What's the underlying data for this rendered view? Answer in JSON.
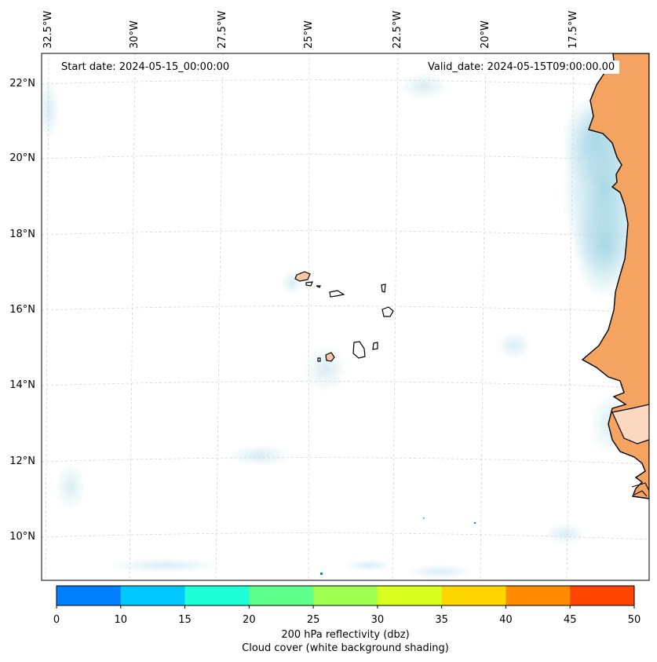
{
  "map": {
    "title_left": "Start date: 2024-05-15_00:00:00",
    "title_right": "Valid_date: 2024-05-15T09:00:00.00",
    "lon_labels": [
      "32.5°W",
      "30°W",
      "27.5°W",
      "25°W",
      "22.5°W",
      "20°W",
      "17.5°W"
    ],
    "lat_labels": [
      "22°N",
      "20°N",
      "18°N",
      "16°N",
      "14°N",
      "12°N",
      "10°N"
    ],
    "land_color": "#f4a460",
    "cloud_color": "#a8d8e6",
    "regions": [
      "Cape Verde Islands",
      "West African coast"
    ]
  },
  "colorbar": {
    "ticks": [
      "0",
      "10",
      "15",
      "20",
      "25",
      "30",
      "35",
      "40",
      "45",
      "50"
    ],
    "colors": [
      "#0080ff",
      "#00c8ff",
      "#1effd8",
      "#5fff8c",
      "#a0ff50",
      "#d8ff20",
      "#ffd700",
      "#ff8c00",
      "#ff4500"
    ],
    "label_line1": "200 hPa reflectivity (dbz)",
    "label_line2": "Cloud cover (white background shading)"
  }
}
